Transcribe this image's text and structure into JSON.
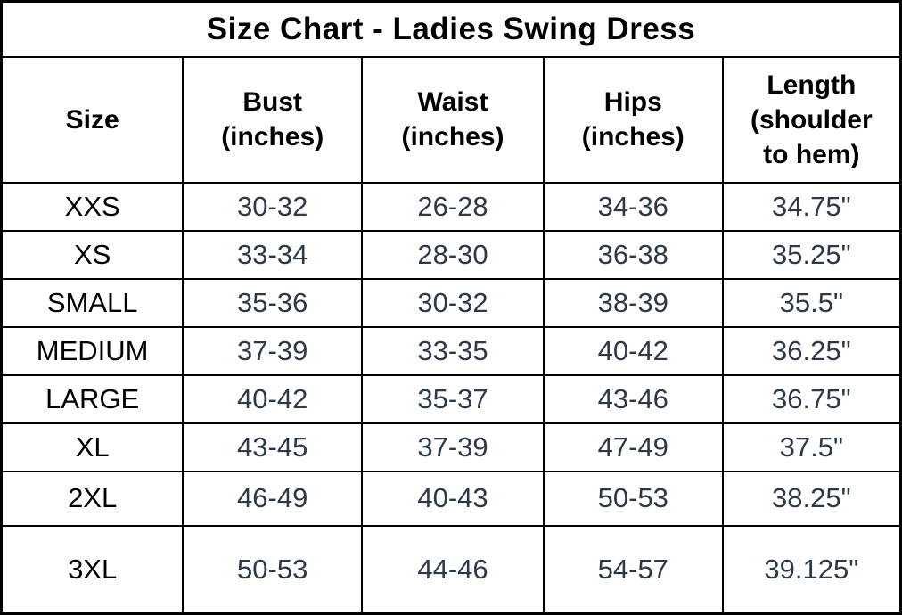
{
  "title": "Size Chart - Ladies Swing Dress",
  "colors": {
    "border": "#000000",
    "title_text": "#000000",
    "header_text": "#000000",
    "size_label_text": "#000000",
    "data_text": "#2e3948",
    "background": "#ffffff"
  },
  "table": {
    "headers": [
      "Size",
      "Bust\n(inches)",
      "Waist\n(inches)",
      "Hips\n(inches)",
      "Length\n(shoulder\nto hem)"
    ],
    "rows": [
      {
        "size": "XXS",
        "bust": "30-32",
        "waist": "26-28",
        "hips": "34-36",
        "length": "34.75\""
      },
      {
        "size": "XS",
        "bust": "33-34",
        "waist": "28-30",
        "hips": "36-38",
        "length": "35.25\""
      },
      {
        "size": "SMALL",
        "bust": "35-36",
        "waist": "30-32",
        "hips": "38-39",
        "length": "35.5\""
      },
      {
        "size": "MEDIUM",
        "bust": "37-39",
        "waist": "33-35",
        "hips": "40-42",
        "length": "36.25\""
      },
      {
        "size": "LARGE",
        "bust": "40-42",
        "waist": "35-37",
        "hips": "43-46",
        "length": "36.75\""
      },
      {
        "size": "XL",
        "bust": "43-45",
        "waist": "37-39",
        "hips": "47-49",
        "length": "37.5\""
      },
      {
        "size": "2XL",
        "bust": "46-49",
        "waist": "40-43",
        "hips": "50-53",
        "length": "38.25\""
      },
      {
        "size": "3XL",
        "bust": "50-53",
        "waist": "44-46",
        "hips": "54-57",
        "length": "39.125\""
      }
    ]
  },
  "chart_data": {
    "type": "table",
    "title": "Size Chart - Ladies Swing Dress",
    "columns": [
      "Size",
      "Bust (inches)",
      "Waist (inches)",
      "Hips (inches)",
      "Length (shoulder to hem)"
    ],
    "rows": [
      [
        "XXS",
        "30-32",
        "26-28",
        "34-36",
        "34.75\""
      ],
      [
        "XS",
        "33-34",
        "28-30",
        "36-38",
        "35.25\""
      ],
      [
        "SMALL",
        "35-36",
        "30-32",
        "38-39",
        "35.5\""
      ],
      [
        "MEDIUM",
        "37-39",
        "33-35",
        "40-42",
        "36.25\""
      ],
      [
        "LARGE",
        "40-42",
        "35-37",
        "43-46",
        "36.75\""
      ],
      [
        "XL",
        "43-45",
        "37-39",
        "47-49",
        "37.5\""
      ],
      [
        "2XL",
        "46-49",
        "40-43",
        "50-53",
        "38.25\""
      ],
      [
        "3XL",
        "50-53",
        "44-46",
        "54-57",
        "39.125\""
      ]
    ]
  }
}
